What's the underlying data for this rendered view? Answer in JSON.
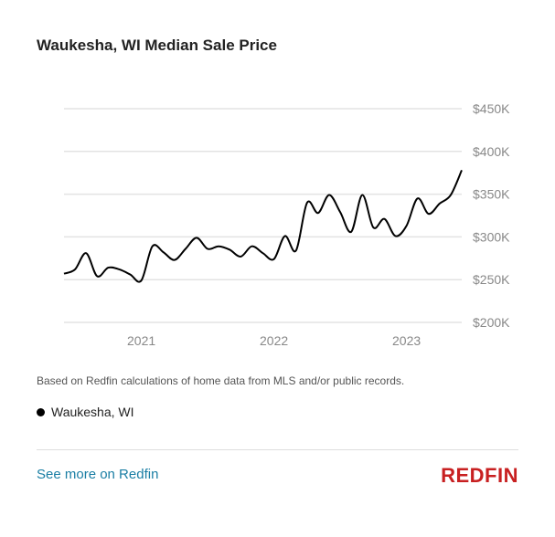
{
  "title": "Waukesha, WI Median Sale Price",
  "note": "Based on Redfin calculations of home data from MLS and/or public records.",
  "legend_label": "Waukesha, WI",
  "link_text": "See more on Redfin",
  "logo_text": "REDFIN",
  "colors": {
    "line": "#000000",
    "grid": "#e3e3e3",
    "link": "#1a7ea4",
    "logo": "#c82021"
  },
  "chart_data": {
    "type": "line",
    "title": "Waukesha, WI Median Sale Price",
    "ylim": [
      200000,
      450000
    ],
    "yticks": [
      200000,
      250000,
      300000,
      350000,
      400000,
      450000
    ],
    "ytick_labels": [
      "$200K",
      "$250K",
      "$300K",
      "$350K",
      "$400K",
      "$450K"
    ],
    "xtick_labels": [
      "2021",
      "2022",
      "2023"
    ],
    "xtick_dates": [
      "2021-01",
      "2022-01",
      "2023-01"
    ],
    "grid": true,
    "legend": "bottom-left",
    "series": [
      {
        "name": "Waukesha, WI",
        "x": [
          "2020-06",
          "2020-07",
          "2020-08",
          "2020-09",
          "2020-10",
          "2020-11",
          "2020-12",
          "2021-01",
          "2021-02",
          "2021-03",
          "2021-04",
          "2021-05",
          "2021-06",
          "2021-07",
          "2021-08",
          "2021-09",
          "2021-10",
          "2021-11",
          "2021-12",
          "2022-01",
          "2022-02",
          "2022-03",
          "2022-04",
          "2022-05",
          "2022-06",
          "2022-07",
          "2022-08",
          "2022-09",
          "2022-10",
          "2022-11",
          "2022-12",
          "2023-01",
          "2023-02",
          "2023-03",
          "2023-04",
          "2023-05",
          "2023-06"
        ],
        "values": [
          257000,
          262000,
          281000,
          254000,
          264000,
          262000,
          256000,
          249000,
          289000,
          282000,
          273000,
          286000,
          299000,
          286000,
          289000,
          285000,
          277000,
          289000,
          281000,
          274000,
          301000,
          284000,
          340000,
          328000,
          349000,
          329000,
          306000,
          349000,
          311000,
          321000,
          301000,
          313000,
          345000,
          327000,
          339000,
          349000,
          378000
        ]
      }
    ]
  }
}
